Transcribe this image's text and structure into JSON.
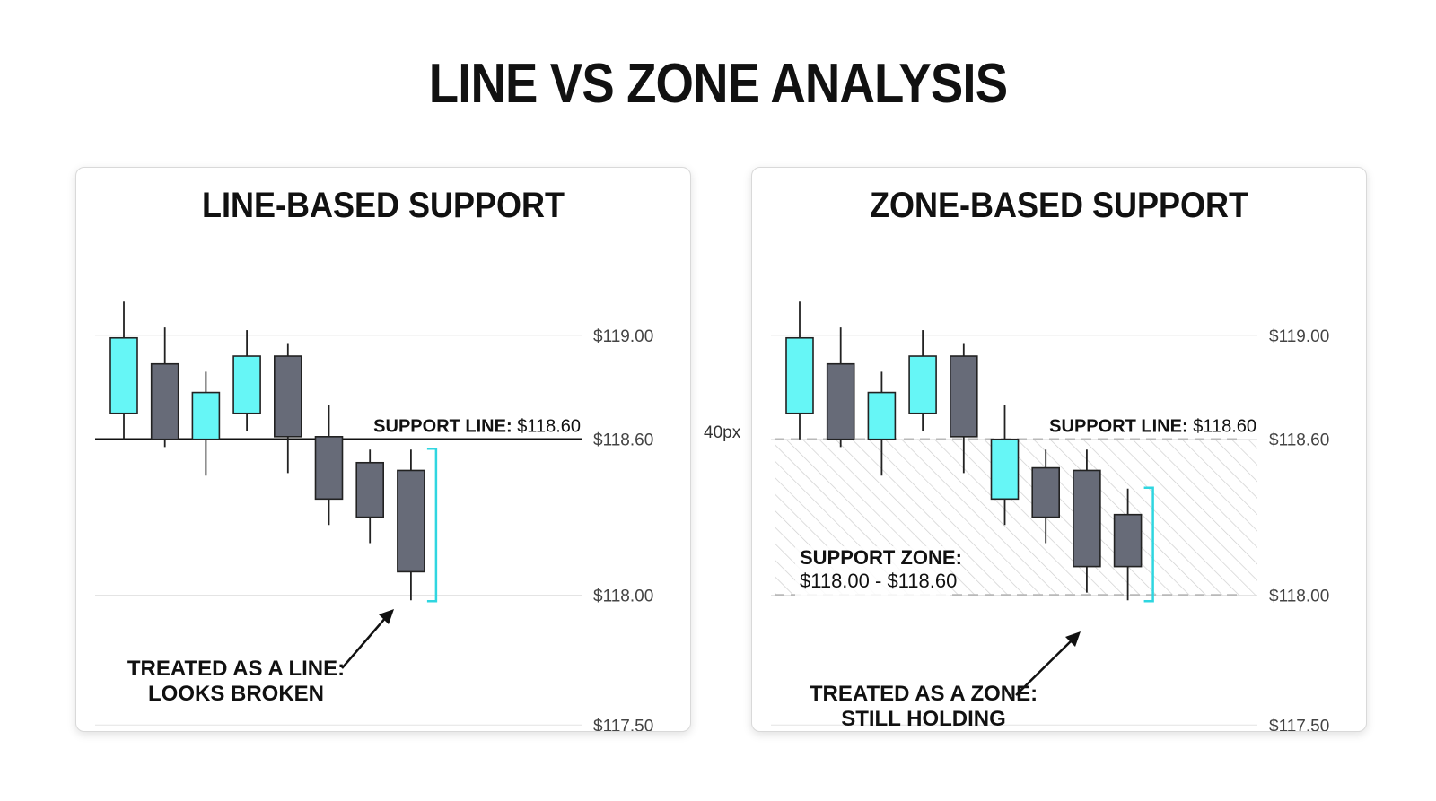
{
  "title": "LINE VS ZONE ANALYSIS",
  "gap_label": "40px",
  "colors": {
    "bullish": "#66f6f6",
    "bearish": "#676b78",
    "bracket": "#2fd6e0",
    "grid": "#e4e4e4"
  },
  "chart_data": [
    {
      "type": "candlestick",
      "title": "LINE-BASED SUPPORT",
      "ylim": [
        117.28,
        119.11
      ],
      "ticks": [
        {
          "value": 119.0,
          "label": "$119.00"
        },
        {
          "value": 118.6,
          "label": "$118.60"
        },
        {
          "value": 118.0,
          "label": "$118.00"
        },
        {
          "value": 117.5,
          "label": "$117.50"
        }
      ],
      "candles": [
        {
          "open": 118.7,
          "close": 118.99,
          "high": 119.13,
          "low": 118.6,
          "dir": "up"
        },
        {
          "open": 118.89,
          "close": 118.6,
          "high": 119.03,
          "low": 118.57,
          "dir": "down"
        },
        {
          "open": 118.6,
          "close": 118.78,
          "high": 118.86,
          "low": 118.46,
          "dir": "up"
        },
        {
          "open": 118.7,
          "close": 118.92,
          "high": 119.02,
          "low": 118.63,
          "dir": "up"
        },
        {
          "open": 118.92,
          "close": 118.61,
          "high": 118.97,
          "low": 118.47,
          "dir": "down"
        },
        {
          "open": 118.61,
          "close": 118.37,
          "high": 118.73,
          "low": 118.27,
          "dir": "down"
        },
        {
          "open": 118.51,
          "close": 118.3,
          "high": 118.56,
          "low": 118.2,
          "dir": "down"
        },
        {
          "open": 118.48,
          "close": 118.09,
          "high": 118.56,
          "low": 117.98,
          "dir": "down"
        }
      ],
      "support_line": {
        "value": 118.6,
        "label_bold": "SUPPORT LINE:",
        "label_value": "$118.60"
      },
      "annotation": {
        "lines": [
          "TREATED AS A LINE:",
          "LOOKS BROKEN"
        ]
      }
    },
    {
      "type": "candlestick",
      "title": "ZONE-BASED SUPPORT",
      "ylim": [
        117.28,
        119.11
      ],
      "ticks": [
        {
          "value": 119.0,
          "label": "$119.00"
        },
        {
          "value": 118.6,
          "label": "$118.60"
        },
        {
          "value": 118.0,
          "label": "$118.00"
        },
        {
          "value": 117.5,
          "label": "$117.50"
        }
      ],
      "candles": [
        {
          "open": 118.7,
          "close": 118.99,
          "high": 119.13,
          "low": 118.6,
          "dir": "up"
        },
        {
          "open": 118.89,
          "close": 118.6,
          "high": 119.03,
          "low": 118.57,
          "dir": "down"
        },
        {
          "open": 118.6,
          "close": 118.78,
          "high": 118.86,
          "low": 118.46,
          "dir": "up"
        },
        {
          "open": 118.7,
          "close": 118.92,
          "high": 119.02,
          "low": 118.63,
          "dir": "up"
        },
        {
          "open": 118.92,
          "close": 118.61,
          "high": 118.97,
          "low": 118.47,
          "dir": "down"
        },
        {
          "open": 118.37,
          "close": 118.6,
          "high": 118.73,
          "low": 118.27,
          "dir": "up"
        },
        {
          "open": 118.49,
          "close": 118.3,
          "high": 118.56,
          "low": 118.2,
          "dir": "down"
        },
        {
          "open": 118.48,
          "close": 118.11,
          "high": 118.56,
          "low": 118.01,
          "dir": "down"
        },
        {
          "open": 118.31,
          "close": 118.11,
          "high": 118.41,
          "low": 117.98,
          "dir": "down"
        }
      ],
      "support_line": {
        "value": 118.6,
        "label_bold": "SUPPORT LINE:",
        "label_value": "$118.60"
      },
      "zone": {
        "low": 118.0,
        "high": 118.6,
        "label": "SUPPORT ZONE:",
        "range": "$118.00 - $118.60"
      },
      "annotation": {
        "lines": [
          "TREATED AS A ZONE:",
          "STILL HOLDING"
        ]
      }
    }
  ]
}
